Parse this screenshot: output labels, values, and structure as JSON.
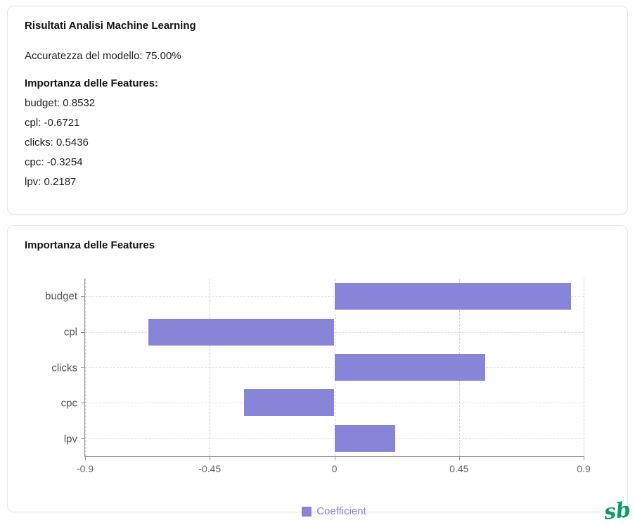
{
  "results_card": {
    "title": "Risultati Analisi Machine Learning",
    "accuracy": "Accuratezza del modello: 75.00%",
    "features_heading": "Importanza delle Features:",
    "features": [
      "budget: 0.8532",
      "cpl: -0.6721",
      "clicks: 0.5436",
      "cpc: -0.3254",
      "lpv: 0.2187"
    ]
  },
  "chart_card": {
    "title": "Importanza delle Features"
  },
  "chart_data": {
    "type": "bar",
    "orientation": "horizontal",
    "title": "Importanza delle Features",
    "categories": [
      "budget",
      "cpl",
      "clicks",
      "cpc",
      "lpv"
    ],
    "series": [
      {
        "name": "Coefficient",
        "values": [
          0.8532,
          -0.6721,
          0.5436,
          -0.3254,
          0.2187
        ]
      }
    ],
    "xlim": [
      -0.9,
      0.9
    ],
    "xticks": [
      -0.9,
      -0.45,
      0,
      0.45,
      0.9
    ],
    "xlabel": "",
    "ylabel": "",
    "grid": true,
    "grid_style": "dashed",
    "bar_color": "#8884d8",
    "legend": [
      "Coefficient"
    ],
    "legend_position": "bottom"
  },
  "watermark": "sb",
  "colors": {
    "bar": "#8884d8",
    "axis": "#8a8f94",
    "tick_text": "#666666",
    "logo_green": "#0d9a6d",
    "card_border": "#e4e7ea"
  }
}
